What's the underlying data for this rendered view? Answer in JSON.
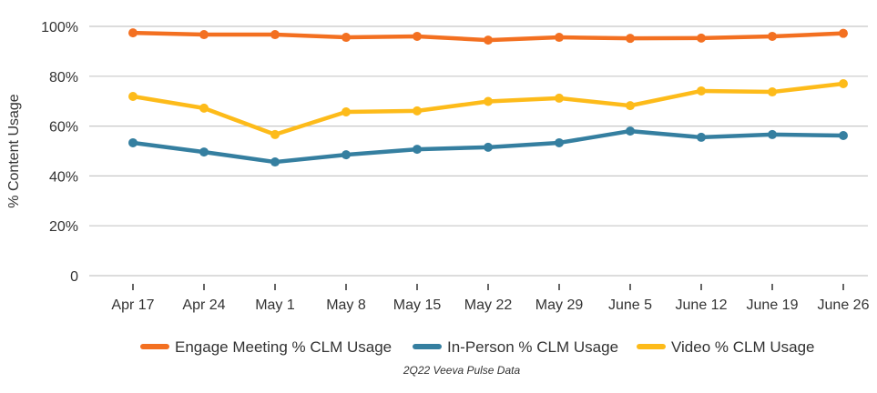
{
  "chart_data": {
    "type": "line",
    "title": "",
    "xlabel": "",
    "ylabel": "% Content Usage",
    "categories": [
      "Apr 17",
      "Apr 24",
      "May 1",
      "May 8",
      "May 15",
      "May 22",
      "May 29",
      "June 5",
      "June 12",
      "June 19",
      "June 26"
    ],
    "ylim": [
      0,
      100
    ],
    "yticks": [
      0,
      20,
      40,
      60,
      80,
      100
    ],
    "ytick_labels": [
      "0",
      "20%",
      "40%",
      "60%",
      "80%",
      "100%"
    ],
    "grid": true,
    "legend_position": "bottom",
    "caption": "2Q22 Veeva Pulse Data",
    "series": [
      {
        "name": "Engage Meeting % CLM Usage",
        "color": "#f37021",
        "values": [
          97.4,
          96.7,
          96.7,
          95.6,
          96.0,
          94.5,
          95.6,
          95.2,
          95.3,
          96.0,
          97.2
        ]
      },
      {
        "name": "In-Person % CLM Usage",
        "color": "#357fa0",
        "values": [
          53.3,
          49.6,
          45.6,
          48.5,
          50.7,
          51.5,
          53.3,
          58.0,
          55.5,
          56.6,
          56.2
        ]
      },
      {
        "name": "Video % CLM Usage",
        "color": "#fdbb1a",
        "values": [
          71.9,
          67.2,
          56.6,
          65.7,
          66.1,
          69.9,
          71.2,
          68.2,
          74.1,
          73.7,
          77.0
        ]
      }
    ]
  }
}
